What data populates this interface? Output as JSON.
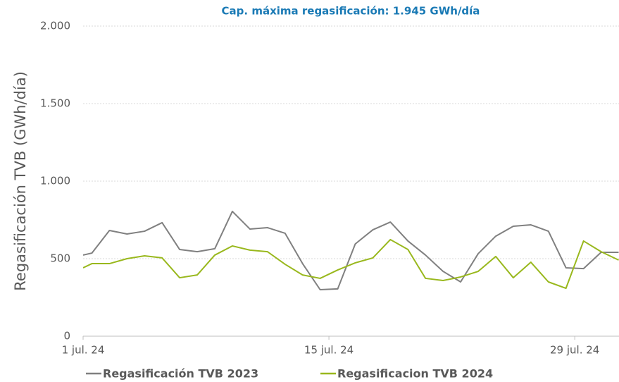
{
  "chart_data": {
    "type": "line",
    "title": "Cap. máxima regasificación: 1.945 GWh/día",
    "y_label": "Regasificación TVB (GWh/día)",
    "x": [
      1,
      1.5,
      2.5,
      3.5,
      4.5,
      5.5,
      6.5,
      7.5,
      8.5,
      9.5,
      10.5,
      11.5,
      12.5,
      13.5,
      14.5,
      15.5,
      16.5,
      17.5,
      18.5,
      19.5,
      20.5,
      21.5,
      22.5,
      23.5,
      24.5,
      25.5,
      26.5,
      27.5,
      28.5,
      29.5,
      30.5,
      31.5
    ],
    "series": [
      {
        "name": "Regasificación TVB 2023",
        "color": "#808080",
        "values": [
          523,
          536,
          682,
          659,
          677,
          732,
          559,
          545,
          564,
          805,
          691,
          700,
          664,
          468,
          300,
          305,
          595,
          686,
          736,
          614,
          523,
          418,
          350,
          532,
          645,
          709,
          718,
          677,
          441,
          436,
          541,
          541
        ]
      },
      {
        "name": "Regasificacion TVB 2024",
        "color": "#99b81d",
        "values": [
          441,
          468,
          468,
          500,
          518,
          505,
          377,
          395,
          523,
          582,
          555,
          545,
          464,
          395,
          373,
          427,
          473,
          505,
          623,
          559,
          373,
          359,
          382,
          418,
          514,
          377,
          477,
          350,
          309,
          614,
          545,
          491
        ]
      }
    ],
    "xlim": [
      1,
      31.6
    ],
    "xticks": [
      {
        "value": 1,
        "label": "1 jul. 24"
      },
      {
        "value": 15,
        "label": "15 jul. 24"
      },
      {
        "value": 29,
        "label": "29 jul. 24"
      }
    ],
    "ylim": [
      0,
      2000
    ],
    "yticks": [
      0,
      500,
      {
        "value": 1000,
        "label": "1.000"
      },
      {
        "value": 1500,
        "label": "1.500"
      },
      {
        "value": 2000,
        "label": "2.000"
      }
    ],
    "grid": true,
    "legend": "bottom"
  }
}
